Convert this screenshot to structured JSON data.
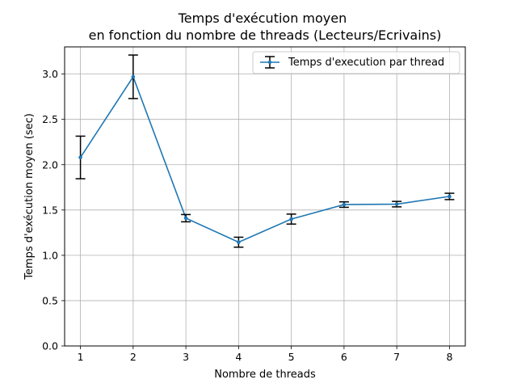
{
  "chart_data": {
    "type": "line",
    "title": [
      "Temps d'exécution moyen",
      "en fonction du nombre de threads  (Lecteurs/Ecrivains)"
    ],
    "xlabel": "Nombre de threads",
    "ylabel": "Temps d'exécution moyen (sec)",
    "x": [
      1,
      2,
      3,
      4,
      5,
      6,
      7,
      8
    ],
    "xlim": [
      0.7,
      8.3
    ],
    "ylim": [
      0,
      3.3
    ],
    "xticks": [
      "1",
      "2",
      "3",
      "4",
      "5",
      "6",
      "7",
      "8"
    ],
    "yticks": [
      "0.0",
      "0.5",
      "1.0",
      "1.5",
      "2.0",
      "2.5",
      "3.0"
    ],
    "grid": true,
    "legend_position": "top-right",
    "series": [
      {
        "name": "Temps d'execution par thread",
        "color": "#1f77b4",
        "values": [
          2.08,
          2.97,
          1.41,
          1.145,
          1.4,
          1.56,
          1.565,
          1.65
        ],
        "errors": [
          0.235,
          0.24,
          0.04,
          0.055,
          0.055,
          0.03,
          0.03,
          0.035
        ]
      }
    ]
  }
}
